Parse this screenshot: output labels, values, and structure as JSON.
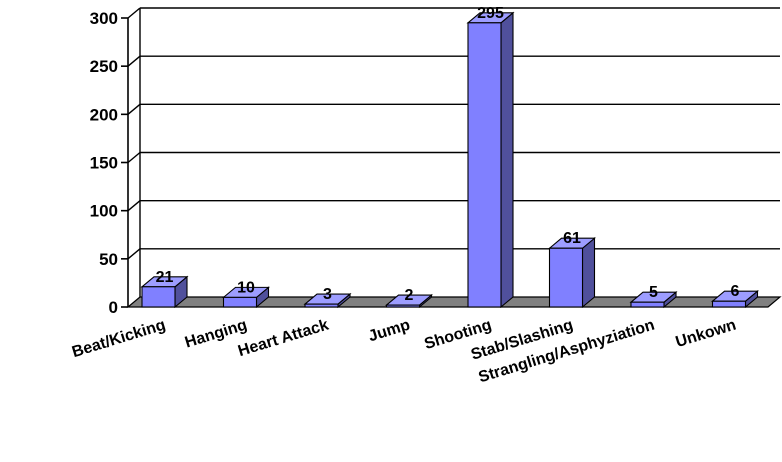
{
  "chart_data": {
    "type": "bar",
    "style": "3d-column",
    "categories": [
      "Beat/Kicking",
      "Hanging",
      "Heart Attack",
      "Jump",
      "Shooting",
      "Stab/Slashing",
      "Strangling/Asphyziation",
      "Unkown"
    ],
    "values": [
      21,
      10,
      3,
      2,
      295,
      61,
      5,
      6
    ],
    "data_labels": [
      "21",
      "10",
      "3",
      "2",
      "295",
      "61",
      "5",
      "6"
    ],
    "title": "",
    "xlabel": "",
    "ylabel": "",
    "ylim": [
      0,
      300
    ],
    "yticks": [
      "0",
      "50",
      "100",
      "150",
      "200",
      "250",
      "300"
    ],
    "grid": true,
    "legend": "none",
    "colors": {
      "bar_front": "#8080ff",
      "bar_top": "#9d9dff",
      "bar_side": "#50509c",
      "bar_outline": "#000000",
      "floor": "#808080",
      "grid": "#000000"
    }
  }
}
